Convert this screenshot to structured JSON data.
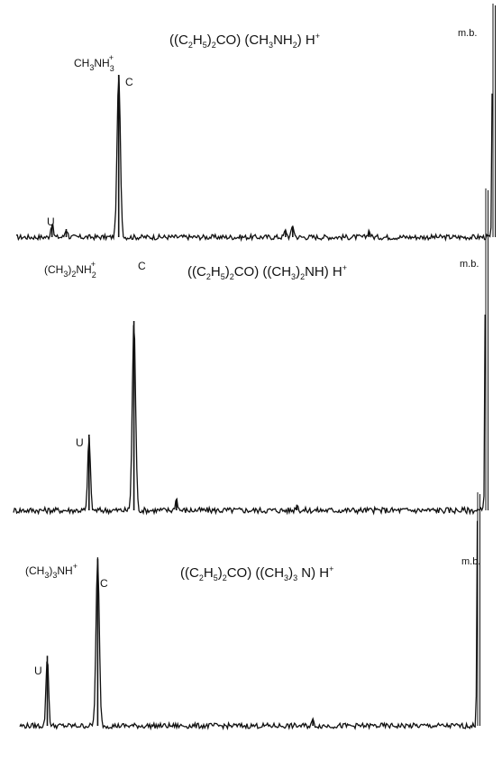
{
  "figure": {
    "panels": [
      {
        "title": {
          "pre": "((C",
          "s1": "2",
          "mid1": "H",
          "s2": "5",
          "mid2": ")",
          "s3": "2",
          "post": "CO) (CH",
          "s4": "3",
          "post2": "NH",
          "s5": "2",
          "post3": ")  H",
          "sup": "+"
        },
        "peak_label": {
          "base": "CH",
          "s1": "3",
          "mid": "NH",
          "s2": "3",
          "sup": "+"
        },
        "c_label": "C",
        "u_label": "U",
        "mb_label": "m.b."
      },
      {
        "title": {
          "pre": "((C",
          "s1": "2",
          "mid1": "H",
          "s2": "5",
          "mid2": ")",
          "s3": "2",
          "post": "CO) ((CH",
          "s4": "3",
          "post2": ")",
          "s5": "2",
          "post3": "NH)  H",
          "sup": "+"
        },
        "peak_label": {
          "base": "(CH",
          "s1": "3",
          "mid": ")",
          "s2": "2",
          "mid2": "NH",
          "s3": "2",
          "sup": "+"
        },
        "c_label": "C",
        "u_label": "U",
        "mb_label": "m.b."
      },
      {
        "title": {
          "pre": "((C",
          "s1": "2",
          "mid1": "H",
          "s2": "5",
          "mid2": ")",
          "s3": "2",
          "post": "CO) ((CH",
          "s4": "3",
          "post2": ")",
          "s5": "3",
          "post3": " N)  H",
          "sup": "+"
        },
        "peak_label": {
          "base": "(CH",
          "s1": "3",
          "mid": ")",
          "s2": "3",
          "mid2": "NH",
          "sup": "+"
        },
        "c_label": "C",
        "u_label": "U",
        "mb_label": "m.b."
      }
    ]
  },
  "chart_data": [
    {
      "type": "line",
      "title": "((C2H5)2CO) (CH3NH2) H+",
      "xlabel": "",
      "ylabel": "",
      "xlim": [
        0,
        100
      ],
      "ylim": [
        0,
        100
      ],
      "grid": false,
      "peaks": [
        {
          "label": "U",
          "x": 7.5,
          "height": 8
        },
        {
          "label": "",
          "x": 10.5,
          "height": 5
        },
        {
          "label": "C",
          "x": 21.5,
          "height": 100
        },
        {
          "label": "",
          "x": 56.5,
          "height": 4
        },
        {
          "label": "",
          "x": 58,
          "height": 7
        },
        {
          "label": "",
          "x": 74,
          "height": 4
        },
        {
          "label": "m.b.",
          "x": 100,
          "height": 190
        }
      ]
    },
    {
      "type": "line",
      "title": "((C2H5)2CO) ((CH3)2NH) H+",
      "xlabel": "",
      "ylabel": "",
      "xlim": [
        0,
        100
      ],
      "ylim": [
        0,
        100
      ],
      "grid": false,
      "peaks": [
        {
          "label": "U",
          "x": 16,
          "height": 40
        },
        {
          "label": "C",
          "x": 25.5,
          "height": 100
        },
        {
          "label": "",
          "x": 34.5,
          "height": 6
        },
        {
          "label": "",
          "x": 60,
          "height": 3
        },
        {
          "label": "m.b.",
          "x": 100,
          "height": 170
        }
      ]
    },
    {
      "type": "line",
      "title": "((C2H5)2CO) ((CH3)3N) H+",
      "xlabel": "",
      "ylabel": "",
      "xlim": [
        0,
        100
      ],
      "ylim": [
        0,
        100
      ],
      "grid": false,
      "peaks": [
        {
          "label": "U",
          "x": 6,
          "height": 42
        },
        {
          "label": "C",
          "x": 17,
          "height": 100
        },
        {
          "label": "",
          "x": 64,
          "height": 3
        },
        {
          "label": "m.b.",
          "x": 100,
          "height": 140
        }
      ]
    }
  ]
}
